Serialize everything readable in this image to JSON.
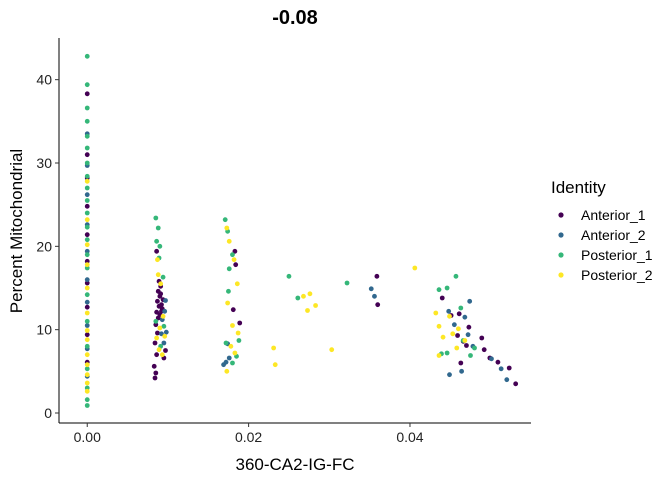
{
  "chart_data": {
    "type": "scatter",
    "title": "-0.08",
    "xlabel": "360-CA2-IG-FC",
    "ylabel": "Percent Mitochondrial",
    "xlim": [
      -0.0035,
      0.055
    ],
    "ylim": [
      -1.2,
      45
    ],
    "xticks": [
      0.0,
      0.02,
      0.04
    ],
    "xtick_labels": [
      "0.00",
      "0.02",
      "0.04"
    ],
    "yticks": [
      0,
      10,
      20,
      30,
      40
    ],
    "ytick_labels": [
      "0",
      "10",
      "20",
      "30",
      "40"
    ],
    "grid": false,
    "legend": {
      "title": "Identity",
      "position": "right"
    },
    "series": [
      {
        "name": "Anterior_1",
        "color": "#440154",
        "points": [
          [
            0,
            38.3
          ],
          [
            0,
            31.0
          ],
          [
            0,
            28.2
          ],
          [
            0,
            24.8
          ],
          [
            0,
            21.4
          ],
          [
            0,
            18.2
          ],
          [
            0,
            15.6
          ],
          [
            0,
            12.7
          ],
          [
            0,
            9.4
          ],
          [
            0,
            6.1
          ],
          [
            0.0084,
            4.2
          ],
          [
            0.0085,
            4.8
          ],
          [
            0.0083,
            5.6
          ],
          [
            0.0086,
            7.0
          ],
          [
            0.0084,
            8.4
          ],
          [
            0.0087,
            9.6
          ],
          [
            0.0085,
            10.6
          ],
          [
            0.0088,
            11.4
          ],
          [
            0.0086,
            12.1
          ],
          [
            0.0089,
            12.8
          ],
          [
            0.0087,
            13.4
          ],
          [
            0.009,
            14.0
          ],
          [
            0.0088,
            14.6
          ],
          [
            0.0091,
            15.2
          ],
          [
            0.0089,
            15.8
          ],
          [
            0.0092,
            13.0
          ],
          [
            0.009,
            11.8
          ],
          [
            0.0093,
            12.5
          ],
          [
            0.0091,
            14.3
          ],
          [
            0.0086,
            19.4
          ],
          [
            0.0095,
            6.6
          ],
          [
            0.0097,
            7.5
          ],
          [
            0.0094,
            13.6
          ],
          [
            0.0092,
            12.2
          ],
          [
            0.0183,
            19.4
          ],
          [
            0.0184,
            17.8
          ],
          [
            0.0189,
            10.8
          ],
          [
            0.0181,
            12.4
          ],
          [
            0.0359,
            16.4
          ],
          [
            0.036,
            13.0
          ],
          [
            0.044,
            13.8
          ],
          [
            0.0451,
            11.7
          ],
          [
            0.0461,
            11.9
          ],
          [
            0.0473,
            10.3
          ],
          [
            0.0459,
            9.3
          ],
          [
            0.0466,
            8.6
          ],
          [
            0.0489,
            9.0
          ],
          [
            0.0492,
            7.6
          ],
          [
            0.0499,
            6.6
          ],
          [
            0.0509,
            6.1
          ],
          [
            0.0523,
            5.4
          ],
          [
            0.0531,
            3.5
          ],
          [
            0.0463,
            6.0
          ],
          [
            0.047,
            8.1
          ]
        ]
      },
      {
        "name": "Anterior_2",
        "color": "#31688E",
        "points": [
          [
            0,
            33.5
          ],
          [
            0,
            29.7
          ],
          [
            0,
            26.2
          ],
          [
            0,
            22.6
          ],
          [
            0,
            19.4
          ],
          [
            0,
            16.0
          ],
          [
            0,
            13.3
          ],
          [
            0,
            10.5
          ],
          [
            0,
            7.7
          ],
          [
            0,
            4.4
          ],
          [
            0.0092,
            9.5
          ],
          [
            0.0095,
            8.4
          ],
          [
            0.0098,
            9.7
          ],
          [
            0.0096,
            12.2
          ],
          [
            0.0093,
            11.2
          ],
          [
            0.0097,
            13.5
          ],
          [
            0.0169,
            5.8
          ],
          [
            0.0172,
            6.1
          ],
          [
            0.0176,
            6.6
          ],
          [
            0.0174,
            8.3
          ],
          [
            0.0352,
            14.9
          ],
          [
            0.0356,
            14.0
          ],
          [
            0.0448,
            12.2
          ],
          [
            0.0455,
            10.6
          ],
          [
            0.0468,
            11.5
          ],
          [
            0.0474,
            13.4
          ],
          [
            0.0472,
            9.4
          ],
          [
            0.0449,
            4.6
          ],
          [
            0.0464,
            5.0
          ],
          [
            0.0501,
            6.5
          ],
          [
            0.0513,
            5.3
          ],
          [
            0.052,
            4.0
          ],
          [
            0.0478,
            8.0
          ]
        ]
      },
      {
        "name": "Posterior_1",
        "color": "#35B779",
        "points": [
          [
            0,
            42.8
          ],
          [
            0,
            39.4
          ],
          [
            0,
            36.6
          ],
          [
            0,
            35.0
          ],
          [
            0,
            33.2
          ],
          [
            0,
            31.8
          ],
          [
            0,
            30.0
          ],
          [
            0,
            28.4
          ],
          [
            0,
            27.0
          ],
          [
            0,
            25.5
          ],
          [
            0,
            24.0
          ],
          [
            0,
            22.3
          ],
          [
            0,
            20.8
          ],
          [
            0,
            19.0
          ],
          [
            0,
            17.4
          ],
          [
            0,
            14.2
          ],
          [
            0,
            11.0
          ],
          [
            0,
            8.0
          ],
          [
            0,
            5.3
          ],
          [
            0,
            3.0
          ],
          [
            0,
            1.6
          ],
          [
            0,
            0.9
          ],
          [
            0.0085,
            23.4
          ],
          [
            0.0088,
            22.2
          ],
          [
            0.0086,
            20.6
          ],
          [
            0.009,
            20.0
          ],
          [
            0.0089,
            18.6
          ],
          [
            0.0094,
            16.3
          ],
          [
            0.0085,
            11.0
          ],
          [
            0.0091,
            8.0
          ],
          [
            0.0095,
            10.4
          ],
          [
            0.0171,
            23.2
          ],
          [
            0.0174,
            21.8
          ],
          [
            0.018,
            19.0
          ],
          [
            0.0176,
            17.3
          ],
          [
            0.0175,
            14.6
          ],
          [
            0.0172,
            8.4
          ],
          [
            0.018,
            6.0
          ],
          [
            0.0185,
            6.8
          ],
          [
            0.0188,
            8.7
          ],
          [
            0.025,
            16.4
          ],
          [
            0.0261,
            13.8
          ],
          [
            0.0322,
            15.6
          ],
          [
            0.0436,
            14.8
          ],
          [
            0.0446,
            15.0
          ],
          [
            0.0457,
            16.4
          ],
          [
            0.0463,
            12.6
          ],
          [
            0.0439,
            7.1
          ],
          [
            0.0446,
            7.2
          ],
          [
            0.0466,
            8.7
          ],
          [
            0.048,
            7.8
          ],
          [
            0.0475,
            6.9
          ]
        ]
      },
      {
        "name": "Posterior_2",
        "color": "#FDE725",
        "points": [
          [
            0,
            27.8
          ],
          [
            0,
            23.2
          ],
          [
            0,
            20.2
          ],
          [
            0,
            17.8
          ],
          [
            0,
            15.0
          ],
          [
            0,
            12.0
          ],
          [
            0,
            9.9
          ],
          [
            0,
            8.8
          ],
          [
            0,
            7.0
          ],
          [
            0,
            5.8
          ],
          [
            0,
            4.6
          ],
          [
            0,
            3.6
          ],
          [
            0,
            2.6
          ],
          [
            0.0087,
            18.4
          ],
          [
            0.0088,
            16.6
          ],
          [
            0.0091,
            15.5
          ],
          [
            0.0086,
            9.0
          ],
          [
            0.0089,
            7.6
          ],
          [
            0.0093,
            7.0
          ],
          [
            0.0096,
            9.2
          ],
          [
            0.009,
            10.2
          ],
          [
            0.0094,
            11.6
          ],
          [
            0.0173,
            22.2
          ],
          [
            0.0176,
            20.6
          ],
          [
            0.0182,
            18.4
          ],
          [
            0.0186,
            15.5
          ],
          [
            0.0174,
            13.2
          ],
          [
            0.018,
            10.5
          ],
          [
            0.0187,
            9.6
          ],
          [
            0.0178,
            8.0
          ],
          [
            0.0173,
            5.0
          ],
          [
            0.0183,
            7.2
          ],
          [
            0.0231,
            7.8
          ],
          [
            0.0233,
            5.8
          ],
          [
            0.0268,
            14.0
          ],
          [
            0.0273,
            12.3
          ],
          [
            0.0276,
            14.3
          ],
          [
            0.0283,
            12.9
          ],
          [
            0.0303,
            7.6
          ],
          [
            0.0406,
            17.4
          ],
          [
            0.0432,
            12.0
          ],
          [
            0.0436,
            10.4
          ],
          [
            0.0441,
            9.1
          ],
          [
            0.0449,
            11.6
          ],
          [
            0.0453,
            9.5
          ],
          [
            0.046,
            10.1
          ],
          [
            0.0468,
            8.7
          ],
          [
            0.0436,
            6.9
          ],
          [
            0.0458,
            7.8
          ]
        ]
      }
    ]
  }
}
